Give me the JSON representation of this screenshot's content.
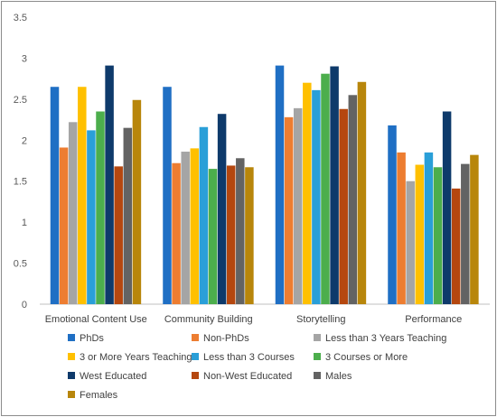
{
  "chart_data": {
    "type": "bar",
    "title": "",
    "xlabel": "",
    "ylabel": "",
    "ylim": [
      0,
      3.5
    ],
    "yticks": [
      "0",
      "0.5",
      "1",
      "1.5",
      "2",
      "2.5",
      "3",
      "3.5"
    ],
    "grid": false,
    "legend_position": "bottom",
    "categories": [
      "Emotional Content Use",
      "Community Building",
      "Storytelling",
      "Performance"
    ],
    "series": [
      {
        "name": "PhDs",
        "color": "#1f6fc4",
        "values": [
          2.65,
          2.65,
          2.91,
          2.18
        ]
      },
      {
        "name": "Non-PhDs",
        "color": "#ed7d31",
        "values": [
          1.91,
          1.72,
          2.28,
          1.85
        ]
      },
      {
        "name": "Less than 3 Years Teaching",
        "color": "#a5a5a5",
        "values": [
          2.22,
          1.86,
          2.39,
          1.5
        ]
      },
      {
        "name": "3 or More Years Teaching",
        "color": "#ffc000",
        "values": [
          2.65,
          1.9,
          2.7,
          1.7
        ]
      },
      {
        "name": "Less than 3 Courses",
        "color": "#2a9fd8",
        "values": [
          2.12,
          2.16,
          2.61,
          1.85
        ]
      },
      {
        "name": "3 Courses or More",
        "color": "#4cae4c",
        "values": [
          2.35,
          1.65,
          2.81,
          1.67
        ]
      },
      {
        "name": "West Educated",
        "color": "#0e3a6b",
        "values": [
          2.91,
          2.32,
          2.9,
          2.35
        ]
      },
      {
        "name": "Non-West Educated",
        "color": "#b5470f",
        "values": [
          1.68,
          1.69,
          2.38,
          1.41
        ]
      },
      {
        "name": "Males",
        "color": "#636363",
        "values": [
          2.15,
          1.78,
          2.55,
          1.71
        ]
      },
      {
        "name": "Females",
        "color": "#b8860b",
        "values": [
          2.49,
          1.67,
          2.71,
          1.82
        ]
      }
    ]
  }
}
